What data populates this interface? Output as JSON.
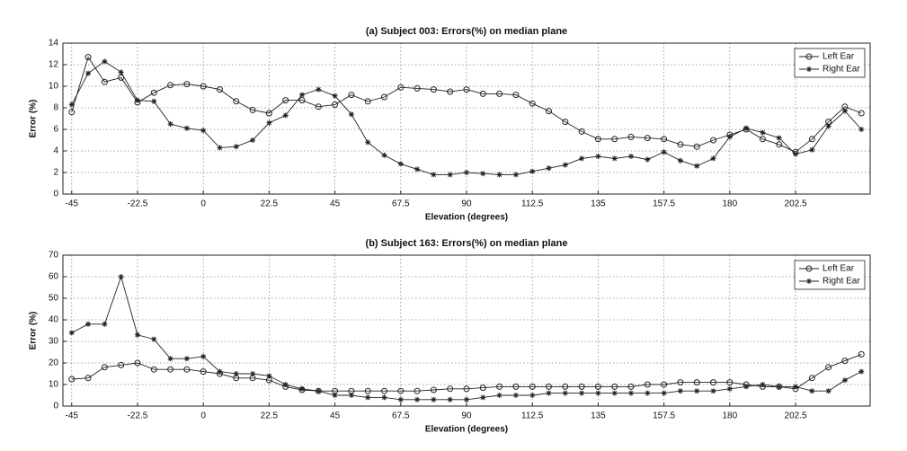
{
  "chart_data": [
    {
      "type": "line",
      "title": "(a) Subject 003: Errors(%) on median plane",
      "xlabel": "Elevation (degrees)",
      "ylabel": "Error (%)",
      "x": [
        -45,
        -39.375,
        -33.75,
        -28.125,
        -22.5,
        -16.875,
        -11.25,
        -5.625,
        0,
        5.625,
        11.25,
        16.875,
        22.5,
        28.125,
        33.75,
        39.375,
        45,
        50.625,
        56.25,
        61.875,
        67.5,
        73.125,
        78.75,
        84.375,
        90,
        95.625,
        101.25,
        106.875,
        112.5,
        118.125,
        123.75,
        129.375,
        135,
        140.625,
        146.25,
        151.875,
        157.5,
        163.125,
        168.75,
        174.375,
        180,
        185.625,
        191.25,
        196.875,
        202.5,
        208.125,
        213.75,
        219.375,
        225
      ],
      "series": [
        {
          "name": "Left Ear",
          "color": "#222222",
          "marker": "o",
          "values": [
            7.6,
            12.7,
            10.4,
            10.8,
            8.5,
            9.4,
            10.1,
            10.2,
            10.0,
            9.7,
            8.6,
            7.8,
            7.5,
            8.7,
            8.7,
            8.1,
            8.3,
            9.2,
            8.6,
            9.0,
            9.9,
            9.8,
            9.7,
            9.5,
            9.7,
            9.3,
            9.3,
            9.2,
            8.4,
            7.7,
            6.7,
            5.8,
            5.1,
            5.1,
            5.3,
            5.2,
            5.1,
            4.6,
            4.4,
            5.0,
            5.5,
            6.0,
            5.1,
            4.6,
            3.9,
            5.1,
            6.7,
            8.1,
            7.5
          ]
        },
        {
          "name": "Right Ear",
          "color": "#222222",
          "marker": "*",
          "values": [
            8.3,
            11.2,
            12.3,
            11.3,
            8.7,
            8.6,
            6.5,
            6.1,
            5.9,
            4.3,
            4.4,
            5.0,
            6.6,
            7.3,
            9.2,
            9.7,
            9.1,
            7.4,
            4.8,
            3.6,
            2.8,
            2.3,
            1.8,
            1.8,
            2.0,
            1.9,
            1.8,
            1.8,
            2.1,
            2.4,
            2.7,
            3.3,
            3.5,
            3.3,
            3.5,
            3.2,
            3.9,
            3.1,
            2.6,
            3.3,
            5.3,
            6.1,
            5.7,
            5.2,
            3.7,
            4.1,
            6.3,
            7.7,
            6.0
          ]
        }
      ],
      "xlim": [
        -48,
        228
      ],
      "xticks": [
        -45,
        -22.5,
        0,
        22.5,
        45,
        67.5,
        90,
        112.5,
        135,
        157.5,
        180,
        202.5
      ],
      "ylim": [
        0,
        14
      ],
      "yticks": [
        0,
        2,
        4,
        6,
        8,
        10,
        12,
        14
      ],
      "grid": true,
      "legend": "upper right"
    },
    {
      "type": "line",
      "title": "(b) Subject 163: Errors(%) on median plane",
      "xlabel": "Elevation (degrees)",
      "ylabel": "Error (%)",
      "x": [
        -45,
        -39.375,
        -33.75,
        -28.125,
        -22.5,
        -16.875,
        -11.25,
        -5.625,
        0,
        5.625,
        11.25,
        16.875,
        22.5,
        28.125,
        33.75,
        39.375,
        45,
        50.625,
        56.25,
        61.875,
        67.5,
        73.125,
        78.75,
        84.375,
        90,
        95.625,
        101.25,
        106.875,
        112.5,
        118.125,
        123.75,
        129.375,
        135,
        140.625,
        146.25,
        151.875,
        157.5,
        163.125,
        168.75,
        174.375,
        180,
        185.625,
        191.25,
        196.875,
        202.5,
        208.125,
        213.75,
        219.375,
        225
      ],
      "series": [
        {
          "name": "Left Ear",
          "color": "#222222",
          "marker": "o",
          "values": [
            12.5,
            13,
            18,
            19,
            20,
            17,
            17,
            17,
            16,
            15,
            13,
            13,
            12,
            9,
            7.5,
            7,
            7,
            7,
            7,
            7,
            7,
            7,
            7.5,
            8,
            8,
            8.5,
            9,
            9,
            9,
            9,
            9,
            9,
            9,
            9,
            9,
            10,
            10,
            11,
            11,
            11,
            11,
            10,
            9,
            9,
            8,
            13,
            18,
            21,
            24
          ]
        },
        {
          "name": "Right Ear",
          "color": "#222222",
          "marker": "*",
          "values": [
            34,
            38,
            38,
            60,
            33,
            31,
            22,
            22,
            23,
            16,
            15,
            15,
            14,
            10,
            8,
            7,
            5,
            5,
            4,
            4,
            3,
            3,
            3,
            3,
            3,
            4,
            5,
            5,
            5,
            6,
            6,
            6,
            6,
            6,
            6,
            6,
            6,
            7,
            7,
            7,
            8,
            9,
            10,
            9,
            9,
            7,
            7,
            12,
            16
          ]
        }
      ],
      "xlim": [
        -48,
        228
      ],
      "xticks": [
        -45,
        -22.5,
        0,
        22.5,
        45,
        67.5,
        90,
        112.5,
        135,
        157.5,
        180,
        202.5
      ],
      "ylim": [
        0,
        70
      ],
      "yticks": [
        0,
        10,
        20,
        30,
        40,
        50,
        60,
        70
      ],
      "grid": true,
      "legend": "upper right"
    }
  ]
}
